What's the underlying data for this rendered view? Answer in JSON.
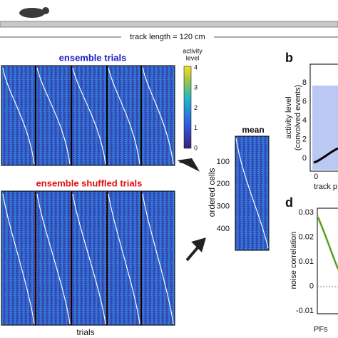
{
  "header": {
    "track_label": "track length = 120 cm"
  },
  "panel_a": {
    "top_title": "ensemble trials",
    "bottom_title": "ensemble shuffled trials",
    "x_label": "trials",
    "colorbar": {
      "label": [
        "activity",
        "level"
      ],
      "ticks": [
        "4",
        "3",
        "2",
        "1",
        "0"
      ]
    }
  },
  "panel_mean": {
    "title": "mean",
    "y_label": "ordered cells",
    "ticks": [
      "100",
      "200",
      "300",
      "400"
    ]
  },
  "panel_b": {
    "letter": "b",
    "y_label": [
      "activity level",
      "(convolved events)"
    ],
    "yticks": [
      "8",
      "6",
      "4",
      "2",
      "0"
    ],
    "xtick": "0",
    "x_label": "track p"
  },
  "panel_d": {
    "letter": "d",
    "y_label": "noise correlation",
    "yticks": [
      "0.03",
      "0.02",
      "0.01",
      "0",
      "-0.01"
    ],
    "x_label": "PFs"
  }
}
